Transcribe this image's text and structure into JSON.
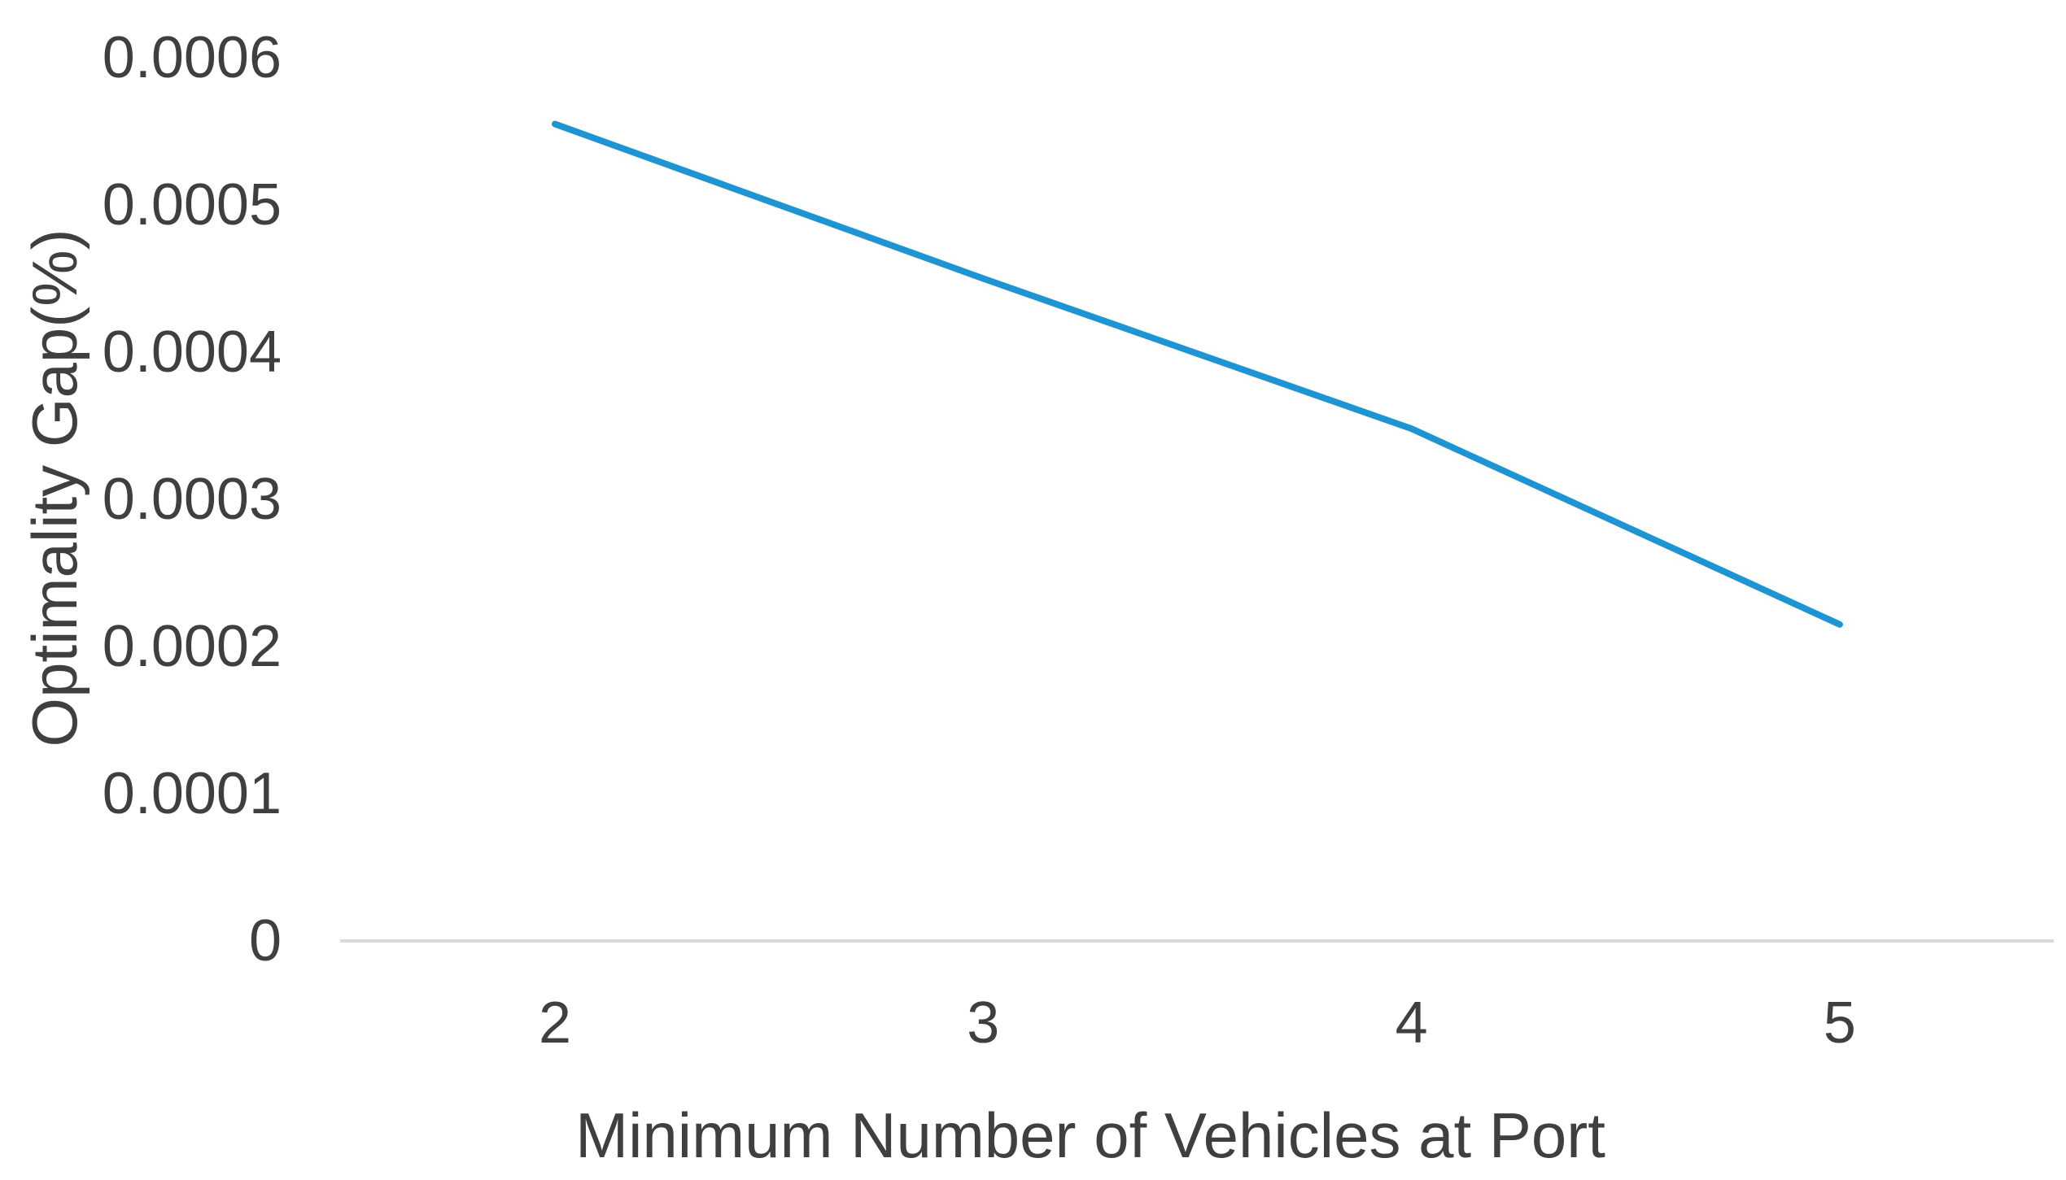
{
  "colors": {
    "series_line": "#1e94d2",
    "axis_line": "#d9d9d9",
    "text": "#3f3f3f",
    "background": "#ffffff"
  },
  "chart_data": {
    "type": "line",
    "title": "",
    "xlabel": "Minimum Number of Vehicles at Port",
    "ylabel": "Optimality Gap(%)",
    "x": [
      2,
      3,
      4,
      5
    ],
    "x_tick_labels": [
      "2",
      "3",
      "4",
      "5"
    ],
    "y_tick_labels": [
      "0.0006",
      "0.0005",
      "0.0004",
      "0.0003",
      "0.0002",
      "0.0001",
      "0"
    ],
    "ylim": [
      0,
      0.0006
    ],
    "xlim": [
      2,
      5
    ],
    "grid": false,
    "legend_position": "none",
    "series": [
      {
        "name": "Optimality Gap(%)",
        "values": [
          0.000555,
          0.00045,
          0.000348,
          0.000215
        ],
        "color": "#1e94d2"
      }
    ]
  }
}
